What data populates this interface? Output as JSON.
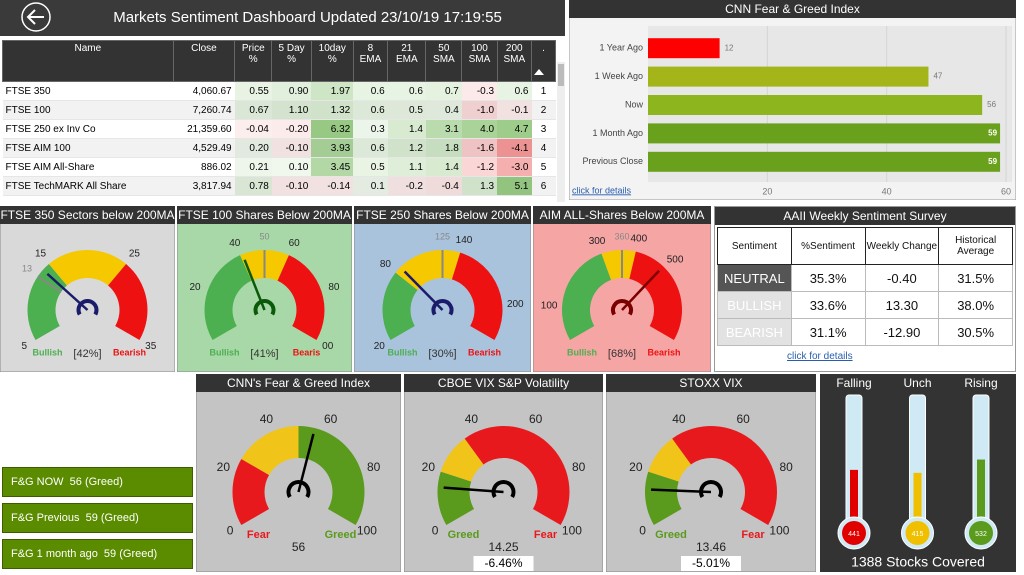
{
  "header": {
    "title": "Markets Sentiment Dashboard Updated 23/10/19 17:19:55"
  },
  "table": {
    "columns": [
      "Name",
      "Close",
      "Price %",
      "5 Day %",
      "10day %",
      "8 EMA",
      "21 EMA",
      "50 SMA",
      "100 SMA",
      "200 SMA",
      "."
    ],
    "rows": [
      [
        "FTSE 350",
        "4,060.67",
        "0.55",
        "0.90",
        "1.97",
        "0.6",
        "0.6",
        "0.7",
        "-0.3",
        "0.6",
        "1"
      ],
      [
        "FTSE 100",
        "7,260.74",
        "0.67",
        "1.10",
        "1.32",
        "0.6",
        "0.5",
        "0.4",
        "-1.0",
        "-0.1",
        "2"
      ],
      [
        "FTSE 250 ex Inv Co",
        "21,359.60",
        "-0.04",
        "-0.20",
        "6.32",
        "0.3",
        "1.4",
        "3.1",
        "4.0",
        "4.7",
        "3"
      ],
      [
        "FTSE AIM 100",
        "4,529.49",
        "0.20",
        "-0.10",
        "3.93",
        "0.6",
        "1.2",
        "1.8",
        "-1.6",
        "-4.1",
        "4"
      ],
      [
        "FTSE AIM All-Share",
        "886.02",
        "0.21",
        "0.10",
        "3.45",
        "0.5",
        "1.1",
        "1.4",
        "-1.2",
        "-3.0",
        "5"
      ],
      [
        "FTSE TechMARK All Share",
        "3,817.94",
        "0.78",
        "-0.10",
        "-0.14",
        "0.1",
        "-0.2",
        "-0.4",
        "1.3",
        "5.1",
        "6"
      ]
    ]
  },
  "aaii": {
    "title": "AAII Weekly Sentiment Survey",
    "columns": [
      "Sentiment",
      "%Sentiment",
      "Weekly Change",
      "Historical Average"
    ],
    "rows": [
      [
        "NEUTRAL",
        "35.3%",
        "-0.40",
        "31.5%"
      ],
      [
        "BULLISH",
        "33.6%",
        "13.30",
        "38.0%"
      ],
      [
        "BEARISH",
        "31.1%",
        "-12.90",
        "30.5%"
      ]
    ],
    "link": "click for details"
  },
  "fg_buttons": [
    "F&G NOW  56 (Greed)",
    "F&G Previous  59 (Greed)",
    "F&G 1 month ago  59 (Greed)"
  ],
  "chart_data": [
    {
      "type": "bar",
      "title": "CNN Fear & Greed Index",
      "categories": [
        "1 Year Ago",
        "1 Week Ago",
        "Now",
        "1 Month Ago",
        "Previous Close"
      ],
      "values": [
        12,
        47,
        56,
        59,
        59
      ],
      "colors": [
        "#ff0000",
        "#a3b518",
        "#8db51e",
        "#6aa11c",
        "#6aa11c"
      ],
      "xlim": [
        0,
        61
      ],
      "xticks": [
        20,
        40,
        60
      ],
      "grid": true,
      "link": "click for details"
    },
    {
      "type": "gauge",
      "title": "FTSE 350 Sectors below 200MA",
      "ylim": [
        5,
        35
      ],
      "yticks": [
        5,
        15,
        25,
        35
      ],
      "target": 13,
      "value": 14,
      "bands": [
        {
          "from": 5,
          "to": 15,
          "color": "#4caf50"
        },
        {
          "from": 15,
          "to": 25,
          "color": "#f5c800"
        },
        {
          "from": 25,
          "to": 35,
          "color": "#ee1111"
        }
      ],
      "left_label": "Bullish",
      "right_label": "Bearish",
      "percent_label": "[42%]",
      "background": "#d9d9d9",
      "needle_color": "#1b1b6b"
    },
    {
      "type": "gauge",
      "title": "FTSE 100  Shares Below 200MA",
      "ylim": [
        0,
        100
      ],
      "yticks": [
        20,
        40,
        60,
        80,
        {
          "value": 100,
          "label": "00"
        }
      ],
      "target": 50,
      "value": 41,
      "bands": [
        {
          "from": 0,
          "to": 40,
          "color": "#4caf50"
        },
        {
          "from": 40,
          "to": 60,
          "color": "#f5c800"
        },
        {
          "from": 60,
          "to": 100,
          "color": "#ee1111"
        }
      ],
      "left_label": "Bullish",
      "right_label": "Bearis",
      "percent_label": "[41%]",
      "background": "#a8d8a8",
      "needle_color": "#0a5a0a"
    },
    {
      "type": "gauge",
      "title": "FTSE 250 Shares Below 200MA",
      "ylim": [
        20,
        230
      ],
      "yticks": [
        20,
        80,
        140,
        200
      ],
      "target": 125,
      "value": 86,
      "bands": [
        {
          "from": 20,
          "to": 80,
          "color": "#4caf50"
        },
        {
          "from": 80,
          "to": 140,
          "color": "#f5c800"
        },
        {
          "from": 140,
          "to": 230,
          "color": "#ee1111"
        }
      ],
      "left_label": "Bullish",
      "right_label": "Bearish",
      "percent_label": "[30%]",
      "background": "#a9c3dc",
      "needle_color": "#1b1b6b"
    },
    {
      "type": "gauge",
      "title": "AIM ALL-Shares Below 200MA",
      "ylim": [
        0,
        720
      ],
      "yticks": [
        100,
        300,
        400,
        500
      ],
      "target": 360,
      "value": 490,
      "bands": [
        {
          "from": 0,
          "to": 300,
          "color": "#4caf50"
        },
        {
          "from": 300,
          "to": 400,
          "color": "#f5c800"
        },
        {
          "from": 400,
          "to": 720,
          "color": "#ee1111"
        }
      ],
      "left_label": "Bullish",
      "right_label": "Bearish",
      "percent_label": "[68%]",
      "background": "#f6a5a5",
      "needle_color": "#7a0000"
    },
    {
      "type": "gauge",
      "title": "CNN's Fear & Greed Index",
      "ylim": [
        0,
        100
      ],
      "yticks": [
        0,
        20,
        40,
        60,
        80,
        100
      ],
      "value": 56,
      "bands": [
        {
          "from": 0,
          "to": 25,
          "color": "#e8191c"
        },
        {
          "from": 25,
          "to": 50,
          "color": "#f0c419"
        },
        {
          "from": 50,
          "to": 100,
          "color": "#5a9a1c"
        }
      ],
      "left_label": "Fear",
      "right_label": "Greed",
      "background": "#c4c4c4",
      "needle_color": "#000000"
    },
    {
      "type": "gauge",
      "title": "CBOE VIX S&P Volatility",
      "ylim": [
        0,
        100
      ],
      "yticks": [
        0,
        20,
        40,
        60,
        80,
        100
      ],
      "value": 14.25,
      "bands": [
        {
          "from": 0,
          "to": 20,
          "color": "#5a9a1c"
        },
        {
          "from": 20,
          "to": 35,
          "color": "#f0c419"
        },
        {
          "from": 35,
          "to": 100,
          "color": "#e8191c"
        }
      ],
      "left_label": "Greed",
      "right_label": "Fear",
      "change_label": "-6.46%",
      "background": "#c4c4c4",
      "needle_color": "#000000"
    },
    {
      "type": "gauge",
      "title": "STOXX VIX",
      "ylim": [
        0,
        100
      ],
      "yticks": [
        0,
        20,
        40,
        60,
        80,
        100
      ],
      "value": 13.46,
      "bands": [
        {
          "from": 0,
          "to": 20,
          "color": "#5a9a1c"
        },
        {
          "from": 20,
          "to": 35,
          "color": "#f0c419"
        },
        {
          "from": 35,
          "to": 100,
          "color": "#e8191c"
        }
      ],
      "left_label": "Greed",
      "right_label": "Fear",
      "change_label": "-5.01%",
      "background": "#c4c4c4",
      "needle_color": "#000000"
    },
    {
      "type": "thermometer",
      "categories": [
        "Falling",
        "Unch",
        "Rising"
      ],
      "values": [
        441,
        415,
        532
      ],
      "colors": [
        "#e00000",
        "#f0c000",
        "#5a9a1c"
      ],
      "ylim": [
        0,
        1100
      ],
      "footer": "1388 Stocks Covered"
    }
  ]
}
